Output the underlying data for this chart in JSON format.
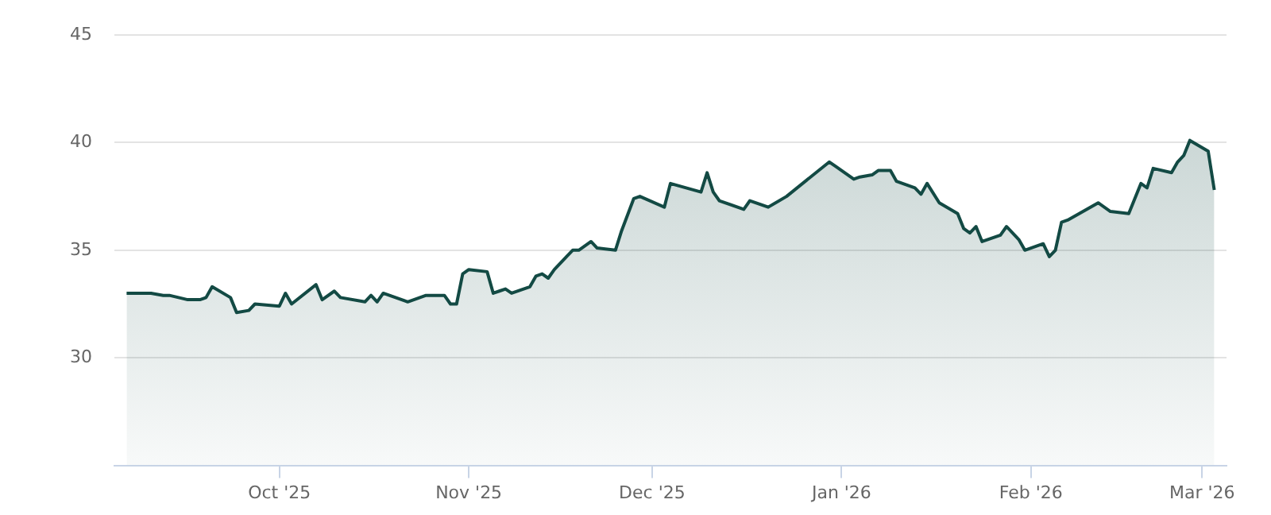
{
  "chart_data": {
    "type": "area",
    "grid": "y",
    "xlim": [
      "2025-09-04",
      "2026-03-05"
    ],
    "ylim": [
      25,
      45
    ],
    "yticks": [
      30,
      35,
      40,
      45
    ],
    "xticks": [
      {
        "value": "2025-10-01",
        "label": "Oct '25"
      },
      {
        "value": "2025-11-01",
        "label": "Nov '25"
      },
      {
        "value": "2025-12-01",
        "label": "Dec '25"
      },
      {
        "value": "2026-01-01",
        "label": "Jan '26"
      },
      {
        "value": "2026-02-01",
        "label": "Feb '26"
      },
      {
        "value": "2026-03-01",
        "label": "Mar '26"
      }
    ],
    "x": [
      "2025-09-06",
      "2025-09-10",
      "2025-09-12",
      "2025-09-13",
      "2025-09-16",
      "2025-09-18",
      "2025-09-19",
      "2025-09-20",
      "2025-09-23",
      "2025-09-24",
      "2025-09-26",
      "2025-09-27",
      "2025-10-01",
      "2025-10-02",
      "2025-10-03",
      "2025-10-07",
      "2025-10-08",
      "2025-10-10",
      "2025-10-11",
      "2025-10-15",
      "2025-10-16",
      "2025-10-17",
      "2025-10-18",
      "2025-10-22",
      "2025-10-23",
      "2025-10-24",
      "2025-10-25",
      "2025-10-28",
      "2025-10-29",
      "2025-10-30",
      "2025-10-31",
      "2025-11-01",
      "2025-11-04",
      "2025-11-05",
      "2025-11-06",
      "2025-11-07",
      "2025-11-08",
      "2025-11-11",
      "2025-11-12",
      "2025-11-13",
      "2025-11-14",
      "2025-11-15",
      "2025-11-17",
      "2025-11-18",
      "2025-11-19",
      "2025-11-21",
      "2025-11-22",
      "2025-11-25",
      "2025-11-26",
      "2025-11-28",
      "2025-11-29",
      "2025-12-03",
      "2025-12-04",
      "2025-12-09",
      "2025-12-10",
      "2025-12-11",
      "2025-12-12",
      "2025-12-16",
      "2025-12-17",
      "2025-12-20",
      "2025-12-23",
      "2025-12-30",
      "2025-12-31",
      "2026-01-03",
      "2026-01-04",
      "2026-01-06",
      "2026-01-07",
      "2026-01-09",
      "2026-01-10",
      "2026-01-13",
      "2026-01-14",
      "2026-01-15",
      "2026-01-17",
      "2026-01-20",
      "2026-01-21",
      "2026-01-22",
      "2026-01-23",
      "2026-01-24",
      "2026-01-27",
      "2026-01-28",
      "2026-01-30",
      "2026-01-31",
      "2026-02-03",
      "2026-02-04",
      "2026-02-05",
      "2026-02-06",
      "2026-02-07",
      "2026-02-12",
      "2026-02-14",
      "2026-02-17",
      "2026-02-19",
      "2026-02-20",
      "2026-02-21",
      "2026-02-24",
      "2026-02-25",
      "2026-02-26",
      "2026-02-27",
      "2026-03-02",
      "2026-03-03"
    ],
    "series": [
      {
        "color": "#134a44",
        "values": [
          33.0,
          33.0,
          32.9,
          32.9,
          32.7,
          32.7,
          32.8,
          33.3,
          32.8,
          32.1,
          32.2,
          32.5,
          32.4,
          33.0,
          32.5,
          33.4,
          32.7,
          33.1,
          32.8,
          32.6,
          32.9,
          32.6,
          33.0,
          32.6,
          32.7,
          32.8,
          32.9,
          32.9,
          32.5,
          32.5,
          33.9,
          34.1,
          34.0,
          33.0,
          33.1,
          33.2,
          33.0,
          33.3,
          33.8,
          33.9,
          33.7,
          34.1,
          34.7,
          35.0,
          35.0,
          35.4,
          35.1,
          35.0,
          35.9,
          37.4,
          37.5,
          37.0,
          38.1,
          37.7,
          38.6,
          37.7,
          37.3,
          36.9,
          37.3,
          37.0,
          37.5,
          39.1,
          38.9,
          38.3,
          38.4,
          38.5,
          38.7,
          38.7,
          38.2,
          37.9,
          37.6,
          38.1,
          37.2,
          36.7,
          36.0,
          35.8,
          36.1,
          35.4,
          35.7,
          36.1,
          35.5,
          35.0,
          35.3,
          34.7,
          35.0,
          36.3,
          36.4,
          37.2,
          36.8,
          36.7,
          38.1,
          37.9,
          38.8,
          38.6,
          39.1,
          39.4,
          40.1,
          39.6,
          37.8
        ]
      }
    ]
  }
}
